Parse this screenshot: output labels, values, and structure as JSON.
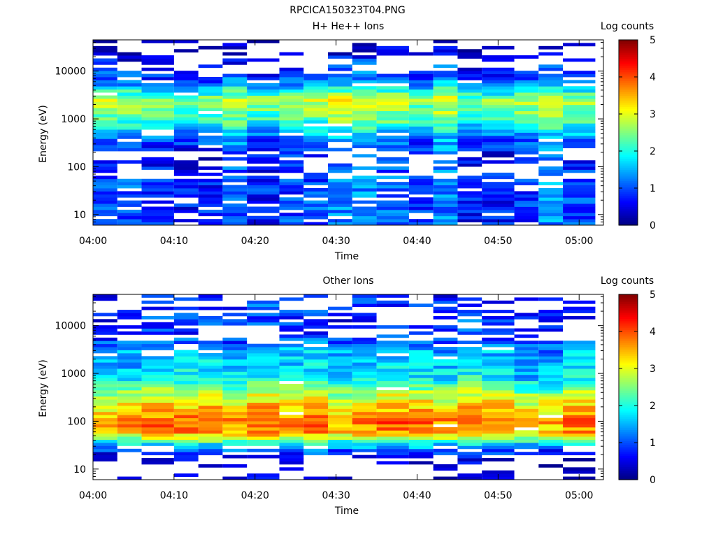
{
  "figure": {
    "title": "RPCICA150323T04.PNG"
  },
  "colorbar": {
    "label": "Log counts",
    "range": [
      0,
      5
    ],
    "ticks": [
      "0",
      "1",
      "2",
      "3",
      "4",
      "5"
    ],
    "colormap": "jet"
  },
  "chart_data": [
    {
      "type": "heatmap",
      "title": "H+ He++ Ions",
      "xlabel": "Time",
      "ylabel": "Energy (eV)",
      "x_ticks": [
        "04:00",
        "04:10",
        "04:20",
        "04:30",
        "04:40",
        "04:50",
        "05:00"
      ],
      "x_range": [
        "04:00",
        "05:03"
      ],
      "y_scale": "log",
      "y_range": [
        6,
        45000
      ],
      "y_ticks": [
        "10",
        "100",
        "1000",
        "10000"
      ],
      "time_bins": [
        "04:00",
        "04:03",
        "04:06",
        "04:10",
        "04:13",
        "04:16",
        "04:19",
        "04:23",
        "04:26",
        "04:29",
        "04:32",
        "04:35",
        "04:39",
        "04:42",
        "04:45",
        "04:48",
        "04:52",
        "04:55",
        "04:58"
      ],
      "profile": [
        {
          "energy_eV": 60,
          "log_counts": 1.0
        },
        {
          "energy_eV": 150,
          "log_counts": 0.8
        },
        {
          "energy_eV": 400,
          "log_counts": 1.3
        },
        {
          "energy_eV": 1000,
          "log_counts": 2.3
        },
        {
          "energy_eV": 2500,
          "log_counts": 2.8
        },
        {
          "energy_eV": 6000,
          "log_counts": 1.2
        },
        {
          "energy_eV": 25000,
          "log_counts": 0.3
        }
      ]
    },
    {
      "type": "heatmap",
      "title": "Other Ions",
      "xlabel": "Time",
      "ylabel": "Energy (eV)",
      "x_ticks": [
        "04:00",
        "04:10",
        "04:20",
        "04:30",
        "04:40",
        "04:50",
        "05:00"
      ],
      "x_range": [
        "04:00",
        "05:03"
      ],
      "y_scale": "log",
      "y_range": [
        6,
        45000
      ],
      "y_ticks": [
        "10",
        "100",
        "1000",
        "10000"
      ],
      "time_bins": [
        "04:00",
        "04:03",
        "04:06",
        "04:10",
        "04:13",
        "04:16",
        "04:19",
        "04:23",
        "04:26",
        "04:29",
        "04:32",
        "04:35",
        "04:39",
        "04:42",
        "04:45",
        "04:48",
        "04:52",
        "04:55",
        "04:58"
      ],
      "profile": [
        {
          "energy_eV": 15,
          "log_counts": 0.2
        },
        {
          "energy_eV": 30,
          "log_counts": 1.5
        },
        {
          "energy_eV": 60,
          "log_counts": 3.6
        },
        {
          "energy_eV": 100,
          "log_counts": 3.8
        },
        {
          "energy_eV": 300,
          "log_counts": 3.0
        },
        {
          "energy_eV": 800,
          "log_counts": 1.8
        },
        {
          "energy_eV": 3000,
          "log_counts": 1.5
        },
        {
          "energy_eV": 6000,
          "log_counts": 0.8
        }
      ]
    }
  ]
}
